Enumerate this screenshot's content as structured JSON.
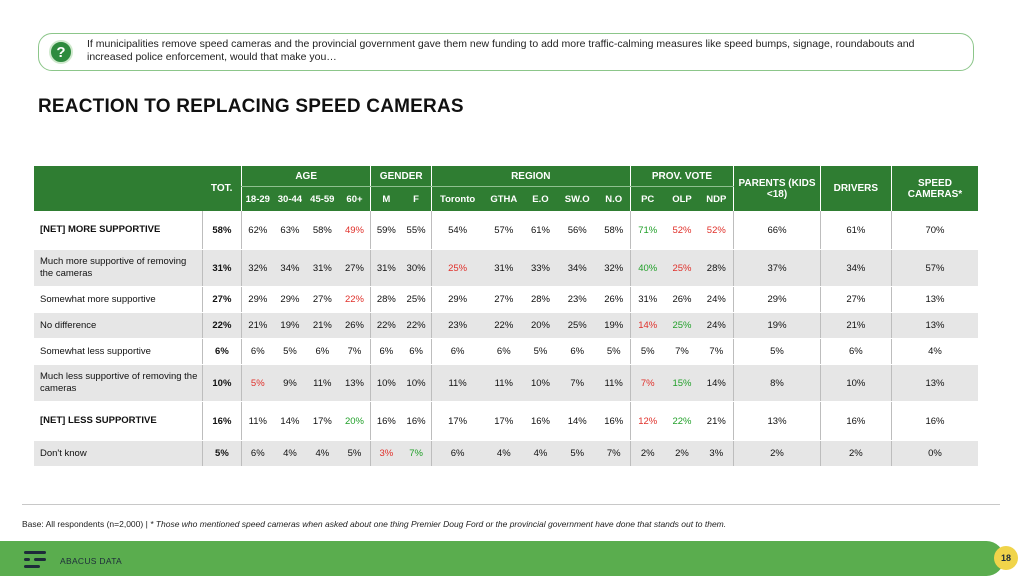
{
  "question": {
    "icon": "question-icon",
    "text": "If municipalities remove speed cameras and the provincial government gave them new funding to add more traffic-calming measures like speed bumps, signage, roundabouts and increased police enforcement, would that make you…"
  },
  "title": "REACTION TO REPLACING SPEED CAMERAS",
  "table": {
    "tot_label": "TOT.",
    "groups": [
      {
        "label": "AGE",
        "cols": [
          "18-29",
          "30-44",
          "45-59",
          "60+"
        ]
      },
      {
        "label": "GENDER",
        "cols": [
          "M",
          "F"
        ]
      },
      {
        "label": "REGION",
        "cols": [
          "Toronto",
          "GTHA",
          "E.O",
          "SW.O",
          "N.O"
        ]
      },
      {
        "label": "PROV. VOTE",
        "cols": [
          "PC",
          "OLP",
          "NDP"
        ]
      }
    ],
    "parents_label": "PARENTS (KIDS <18)",
    "drivers_label": "DRIVERS",
    "speed_label": "SPEED CAMERAS*",
    "rows": [
      {
        "label": "[NET] MORE SUPPORTIVE",
        "cells": [
          "58%",
          "62%",
          "63%",
          "58%",
          "49%",
          "59%",
          "55%",
          "54%",
          "57%",
          "61%",
          "56%",
          "58%",
          "71%",
          "52%",
          "52%",
          "66%",
          "61%",
          "70%"
        ]
      },
      {
        "label": "Much more supportive of removing the cameras",
        "cells": [
          "31%",
          "32%",
          "34%",
          "31%",
          "27%",
          "31%",
          "30%",
          "25%",
          "31%",
          "33%",
          "34%",
          "32%",
          "40%",
          "25%",
          "28%",
          "37%",
          "34%",
          "57%"
        ]
      },
      {
        "label": "Somewhat more supportive",
        "cells": [
          "27%",
          "29%",
          "29%",
          "27%",
          "22%",
          "28%",
          "25%",
          "29%",
          "27%",
          "28%",
          "23%",
          "26%",
          "31%",
          "26%",
          "24%",
          "29%",
          "27%",
          "13%"
        ]
      },
      {
        "label": "No difference",
        "cells": [
          "22%",
          "21%",
          "19%",
          "21%",
          "26%",
          "22%",
          "22%",
          "23%",
          "22%",
          "20%",
          "25%",
          "19%",
          "14%",
          "25%",
          "24%",
          "19%",
          "21%",
          "13%"
        ]
      },
      {
        "label": "Somewhat less supportive",
        "cells": [
          "6%",
          "6%",
          "5%",
          "6%",
          "7%",
          "6%",
          "6%",
          "6%",
          "6%",
          "5%",
          "6%",
          "5%",
          "5%",
          "7%",
          "7%",
          "5%",
          "6%",
          "4%"
        ]
      },
      {
        "label": "Much less supportive of removing the cameras",
        "cells": [
          "10%",
          "5%",
          "9%",
          "11%",
          "13%",
          "10%",
          "10%",
          "11%",
          "11%",
          "10%",
          "7%",
          "11%",
          "7%",
          "15%",
          "14%",
          "8%",
          "10%",
          "13%"
        ]
      },
      {
        "label": "[NET] LESS SUPPORTIVE",
        "cells": [
          "16%",
          "11%",
          "14%",
          "17%",
          "20%",
          "16%",
          "16%",
          "17%",
          "17%",
          "16%",
          "14%",
          "16%",
          "12%",
          "22%",
          "21%",
          "13%",
          "16%",
          "16%"
        ]
      },
      {
        "label": "Don't know",
        "cells": [
          "5%",
          "6%",
          "4%",
          "4%",
          "5%",
          "3%",
          "7%",
          "6%",
          "4%",
          "4%",
          "5%",
          "7%",
          "2%",
          "2%",
          "3%",
          "2%",
          "2%",
          "0%"
        ]
      }
    ]
  },
  "base_note": "Base: All respondents (n=2,000) | ",
  "base_italic": "* Those who mentioned speed cameras when asked about one thing Premier Doug Ford or the provincial government have done that stands out to them.",
  "brand": "ABACUS DATA",
  "page_number": "18"
}
